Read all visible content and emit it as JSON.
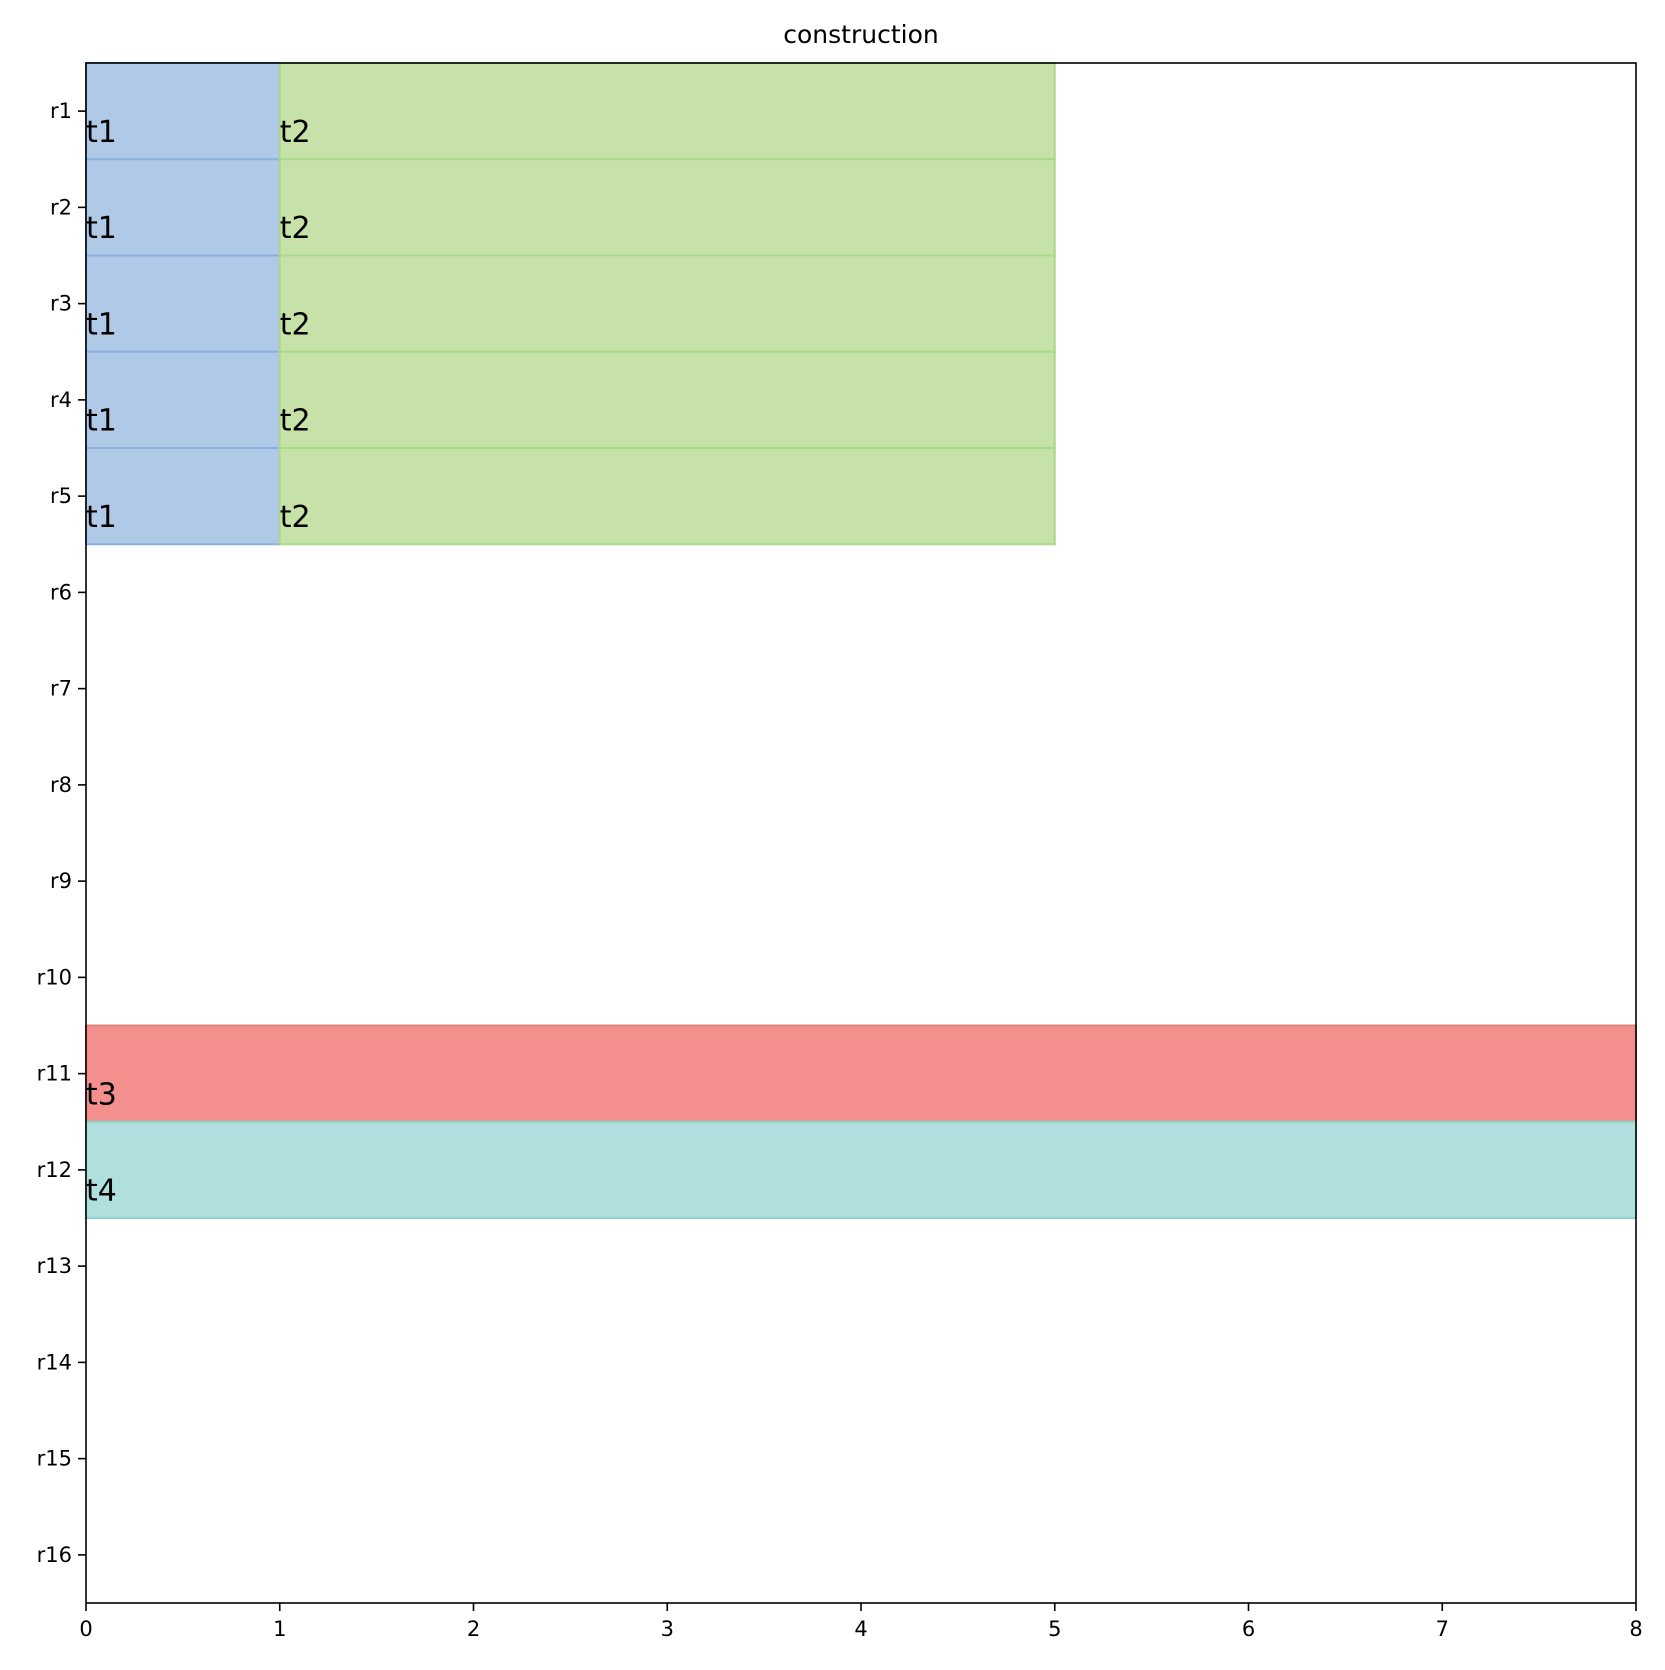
{
  "chart_data": {
    "type": "bar",
    "orientation": "horizontal",
    "title": "construction",
    "xlabel": "",
    "ylabel": "",
    "xlim": [
      0,
      8
    ],
    "x_ticks": [
      "0",
      "1",
      "2",
      "3",
      "4",
      "5",
      "6",
      "7",
      "8"
    ],
    "categories": [
      "r1",
      "r2",
      "r3",
      "r4",
      "r5",
      "r6",
      "r7",
      "r8",
      "r9",
      "r10",
      "r11",
      "r12",
      "r13",
      "r14",
      "r15",
      "r16"
    ],
    "grid": false,
    "legend": "none",
    "series": [
      {
        "label": "t1",
        "color": "#b0c9e6",
        "edge_color": "#8bb0de",
        "start": 0,
        "end": 1,
        "rows": [
          "r1",
          "r2",
          "r3",
          "r4",
          "r5"
        ]
      },
      {
        "label": "t2",
        "color": "#c7e2a8",
        "edge_color": "#a9d98b",
        "start": 1,
        "end": 5,
        "rows": [
          "r1",
          "r2",
          "r3",
          "r4",
          "r5"
        ]
      },
      {
        "label": "t3",
        "color": "#f3908d",
        "edge_color": "#e07f7d",
        "start": 0,
        "end": 8,
        "rows": [
          "r11"
        ]
      },
      {
        "label": "t4",
        "color": "#afe0dd",
        "edge_color": "#8fd2cc",
        "start": 0,
        "end": 8,
        "rows": [
          "r12"
        ]
      }
    ]
  }
}
